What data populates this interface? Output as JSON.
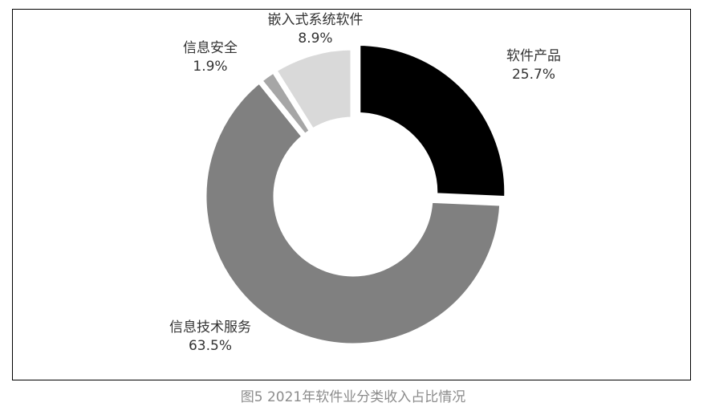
{
  "chart_data": {
    "type": "donut",
    "title": "图5  2021年软件业分类收入占比情况",
    "categories": [
      "软件产品",
      "信息技术服务",
      "信息安全",
      "嵌入式系统软件"
    ],
    "values": [
      25.7,
      63.5,
      1.9,
      8.9
    ],
    "value_labels": [
      "25.7%",
      "63.5%",
      "1.9%",
      "8.9%"
    ],
    "colors": [
      "#000000",
      "#808080",
      "#a6a6a6",
      "#d9d9d9"
    ]
  }
}
